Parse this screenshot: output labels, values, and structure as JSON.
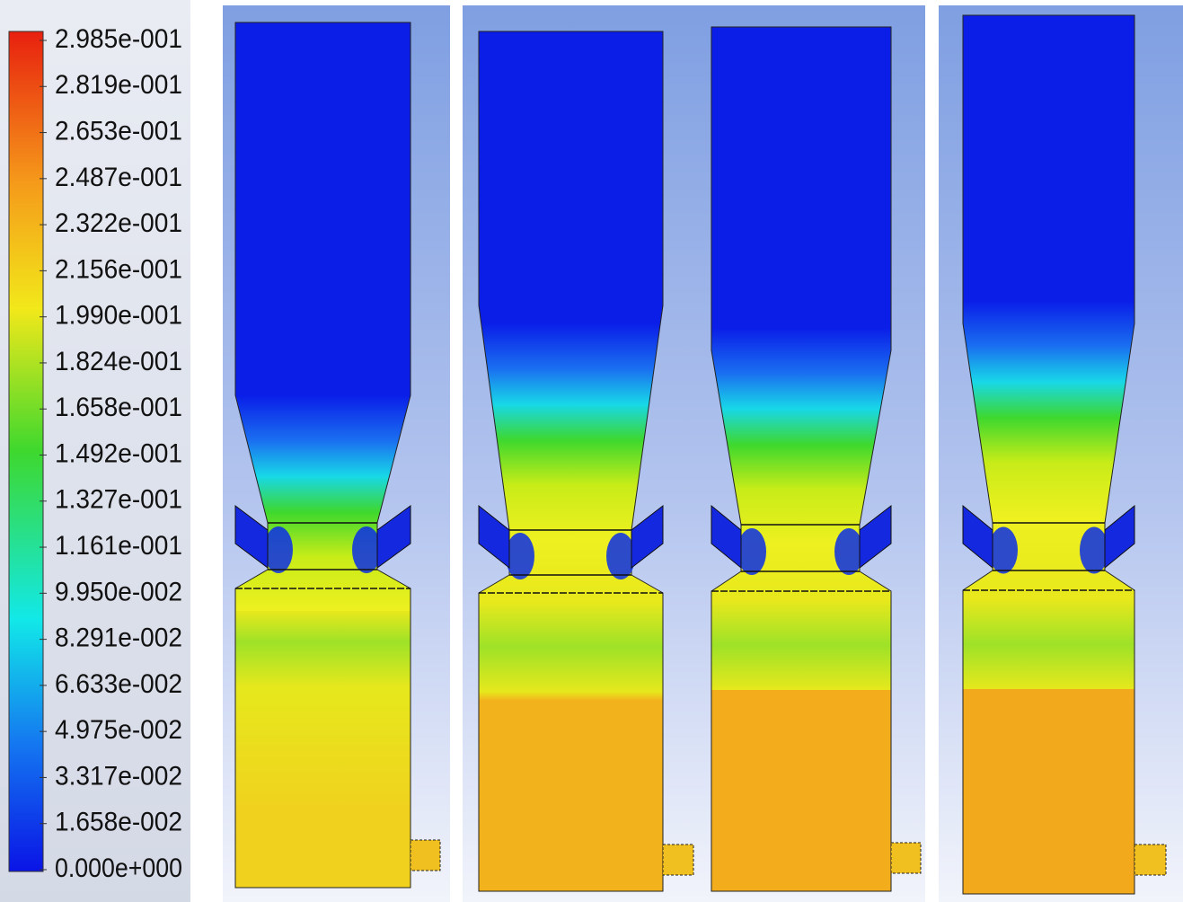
{
  "colorbar": {
    "labels": [
      "2.985e-001",
      "2.819e-001",
      "2.653e-001",
      "2.487e-001",
      "2.322e-001",
      "2.156e-001",
      "1.990e-001",
      "1.824e-001",
      "1.658e-001",
      "1.492e-001",
      "1.327e-001",
      "1.161e-001",
      "9.950e-002",
      "8.291e-002",
      "6.633e-002",
      "4.975e-002",
      "3.317e-002",
      "1.658e-002",
      "0.000e+000"
    ]
  }
}
